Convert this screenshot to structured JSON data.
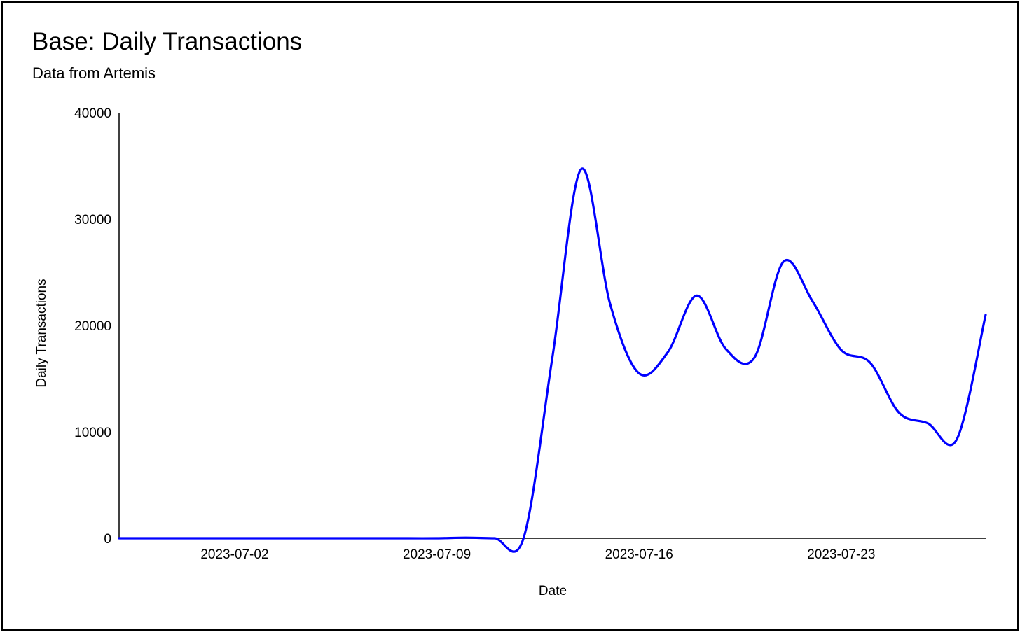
{
  "chart_data": {
    "type": "line",
    "title": "Base: Daily Transactions",
    "subtitle": "Data from Artemis",
    "xlabel": "Date",
    "ylabel": "Daily Transactions",
    "ylim": [
      0,
      40000
    ],
    "yticks": [
      "0",
      "10000",
      "20000",
      "30000",
      "40000"
    ],
    "xticks": [
      "2023-07-02",
      "2023-07-09",
      "2023-07-16",
      "2023-07-23"
    ],
    "xlim": [
      "2023-06-28",
      "2023-07-28"
    ],
    "grid": false,
    "line_color": "#0000ff",
    "series": [
      {
        "x": [
          "2023-06-28",
          "2023-06-29",
          "2023-06-30",
          "2023-07-01",
          "2023-07-02",
          "2023-07-03",
          "2023-07-04",
          "2023-07-05",
          "2023-07-06",
          "2023-07-07",
          "2023-07-08",
          "2023-07-09",
          "2023-07-10",
          "2023-07-11",
          "2023-07-12",
          "2023-07-13",
          "2023-07-14",
          "2023-07-15",
          "2023-07-16",
          "2023-07-17",
          "2023-07-18",
          "2023-07-19",
          "2023-07-20",
          "2023-07-21",
          "2023-07-22",
          "2023-07-23",
          "2023-07-24",
          "2023-07-25",
          "2023-07-26",
          "2023-07-27",
          "2023-07-28"
        ],
        "values": [
          0,
          0,
          0,
          0,
          0,
          0,
          0,
          0,
          0,
          0,
          0,
          0,
          50,
          0,
          0,
          17000,
          34700,
          22000,
          15500,
          17500,
          22800,
          17800,
          17000,
          26000,
          22300,
          17700,
          16500,
          11800,
          10800,
          9300,
          21000
        ]
      }
    ]
  }
}
